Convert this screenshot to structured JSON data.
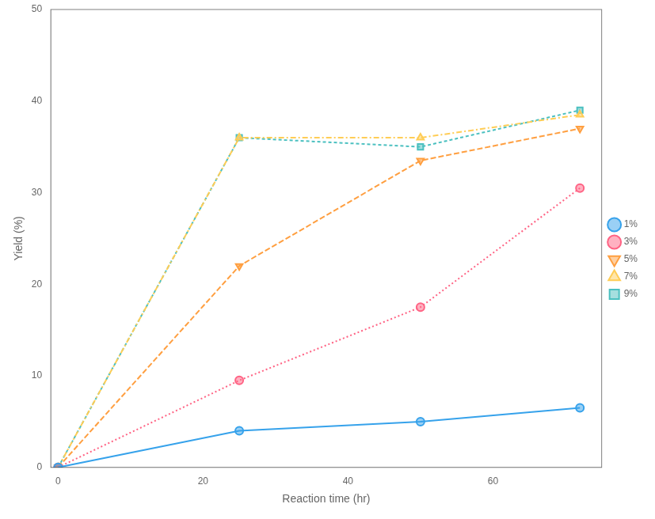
{
  "chart_data": {
    "type": "line",
    "x": [
      0,
      25,
      50,
      72
    ],
    "series": [
      {
        "name": "1%",
        "values": [
          0,
          4,
          5,
          6.5
        ],
        "marker": "circle",
        "line_style": "solid"
      },
      {
        "name": "3%",
        "values": [
          0,
          9.5,
          17.5,
          30.5
        ],
        "marker": "circle",
        "line_style": "dotted"
      },
      {
        "name": "5%",
        "values": [
          0,
          22,
          33.5,
          37
        ],
        "marker": "triangle_down",
        "line_style": "dashed"
      },
      {
        "name": "7%",
        "values": [
          0,
          36,
          36,
          38.5
        ],
        "marker": "triangle_up",
        "line_style": "dashdot"
      },
      {
        "name": "9%",
        "values": [
          0,
          36,
          35,
          39
        ],
        "marker": "square",
        "line_style": "dashed"
      }
    ],
    "xlabel": "Reaction time (hr)",
    "ylabel": "Yield (%)",
    "xlim": [
      -1,
      75
    ],
    "ylim": [
      0,
      50
    ],
    "xticks": [
      0,
      20,
      40,
      60
    ],
    "yticks": [
      0,
      10,
      20,
      30,
      40,
      50
    ],
    "grid": false,
    "legend": "right"
  }
}
